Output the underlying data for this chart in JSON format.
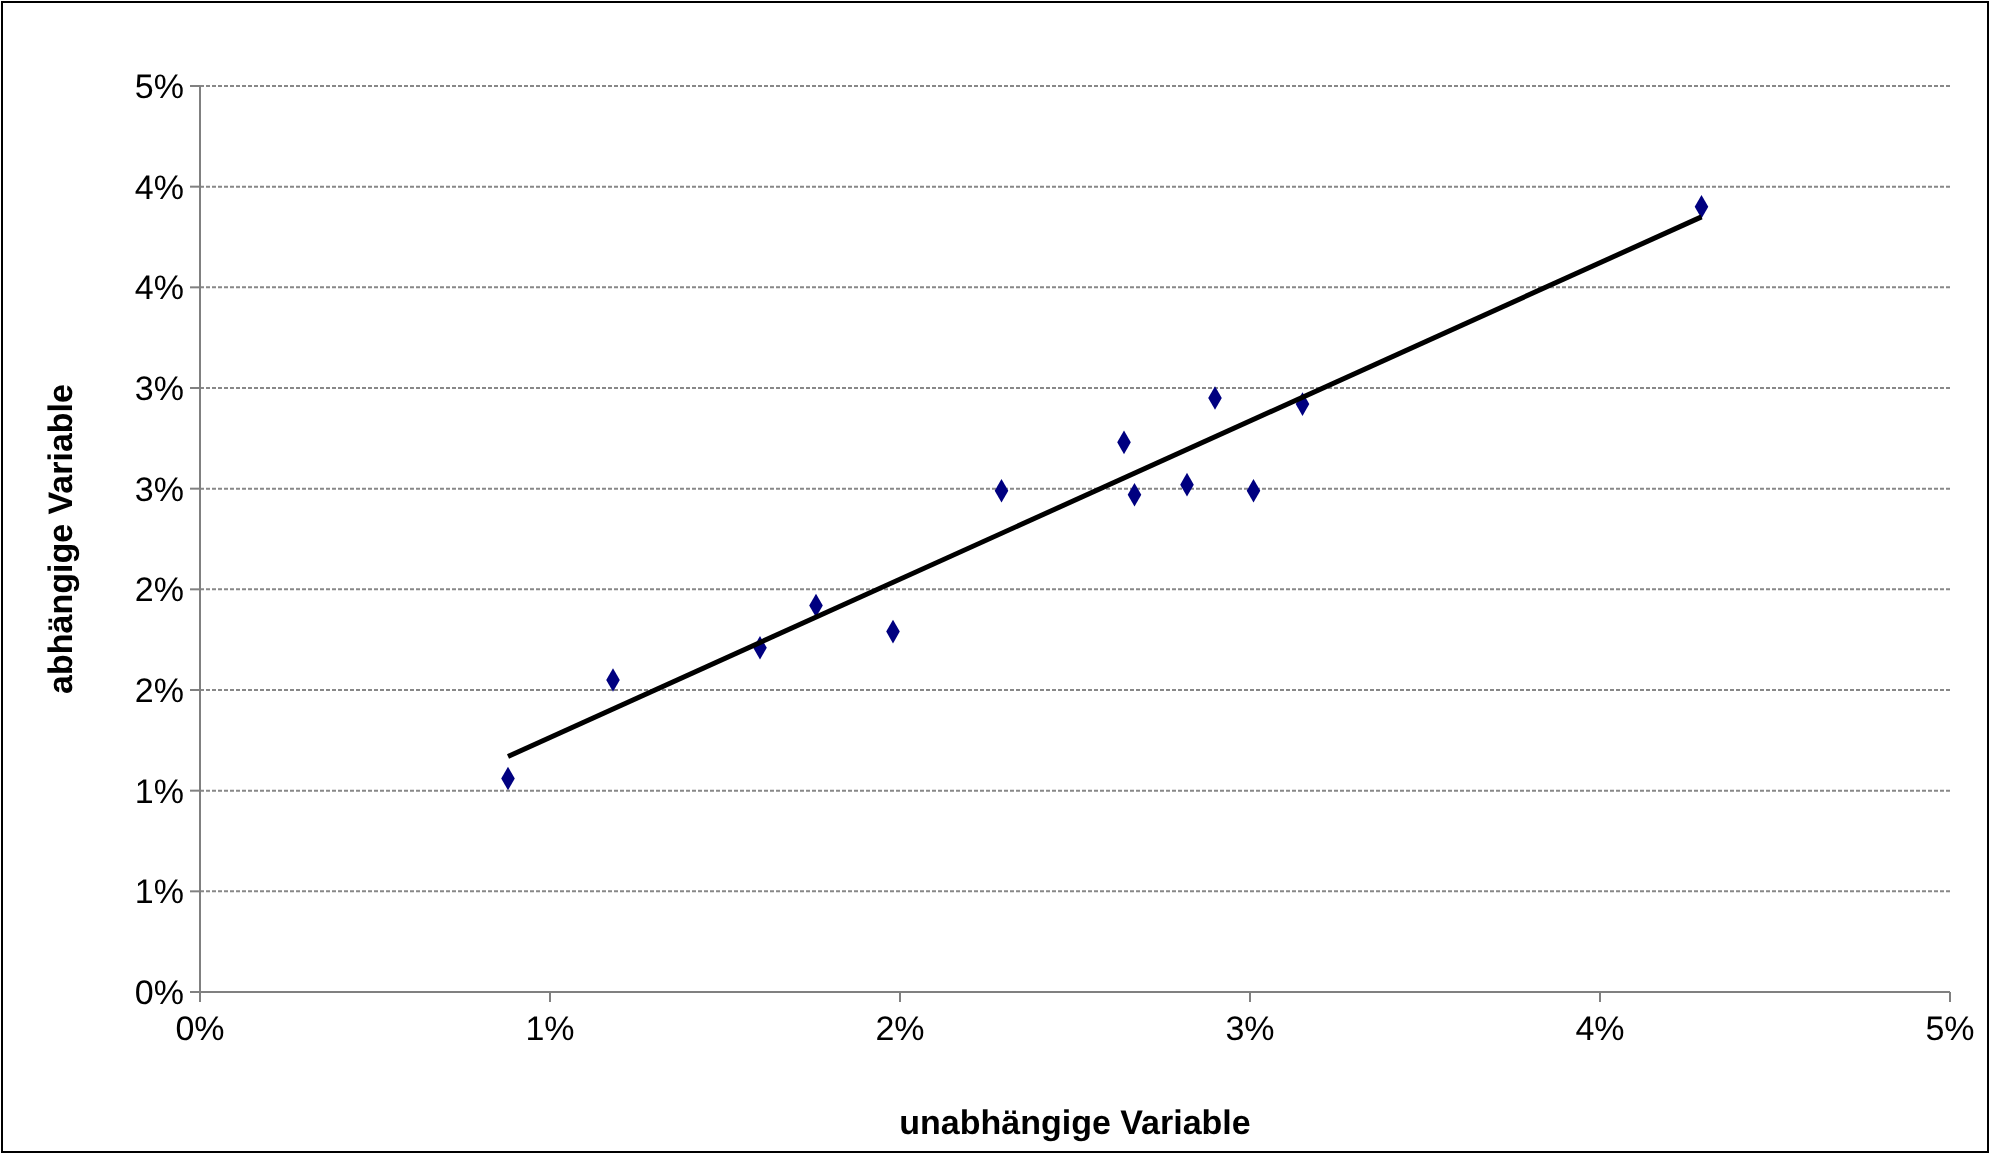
{
  "chart_data": {
    "type": "scatter",
    "xlabel": "unabhängige Variable",
    "ylabel": "abhängige Variable",
    "xlim": [
      0,
      5
    ],
    "xticks": [
      {
        "value": 0,
        "label": "0%"
      },
      {
        "value": 1,
        "label": "1%"
      },
      {
        "value": 2,
        "label": "2%"
      },
      {
        "value": 3,
        "label": "3%"
      },
      {
        "value": 4,
        "label": "4%"
      },
      {
        "value": 5,
        "label": "5%"
      }
    ],
    "ylim": [
      0,
      4.5
    ],
    "yticks": [
      {
        "value": 0,
        "label": "0%"
      },
      {
        "value": 0.5,
        "label": "1%"
      },
      {
        "value": 1,
        "label": "1%"
      },
      {
        "value": 1.5,
        "label": "2%"
      },
      {
        "value": 2,
        "label": "2%"
      },
      {
        "value": 2.5,
        "label": "3%"
      },
      {
        "value": 3,
        "label": "3%"
      },
      {
        "value": 3.5,
        "label": "4%"
      },
      {
        "value": 4,
        "label": "4%"
      },
      {
        "value": 4.5,
        "label": "5%"
      }
    ],
    "grid": "y",
    "series": [
      {
        "marker": "diamond",
        "color": "#000080",
        "x": [
          0.88,
          1.18,
          1.6,
          1.76,
          1.98,
          2.29,
          2.64,
          2.67,
          2.82,
          2.9,
          3.01,
          3.15,
          4.29
        ],
        "values": [
          1.06,
          1.55,
          1.71,
          1.92,
          1.79,
          2.49,
          2.73,
          2.47,
          2.52,
          2.95,
          2.49,
          2.92,
          3.9
        ]
      },
      {
        "type": "line",
        "marker": "none",
        "line_style": "solid",
        "color": "#000000",
        "x": [
          0.88,
          4.29
        ],
        "values": [
          1.17,
          3.85
        ]
      }
    ]
  }
}
